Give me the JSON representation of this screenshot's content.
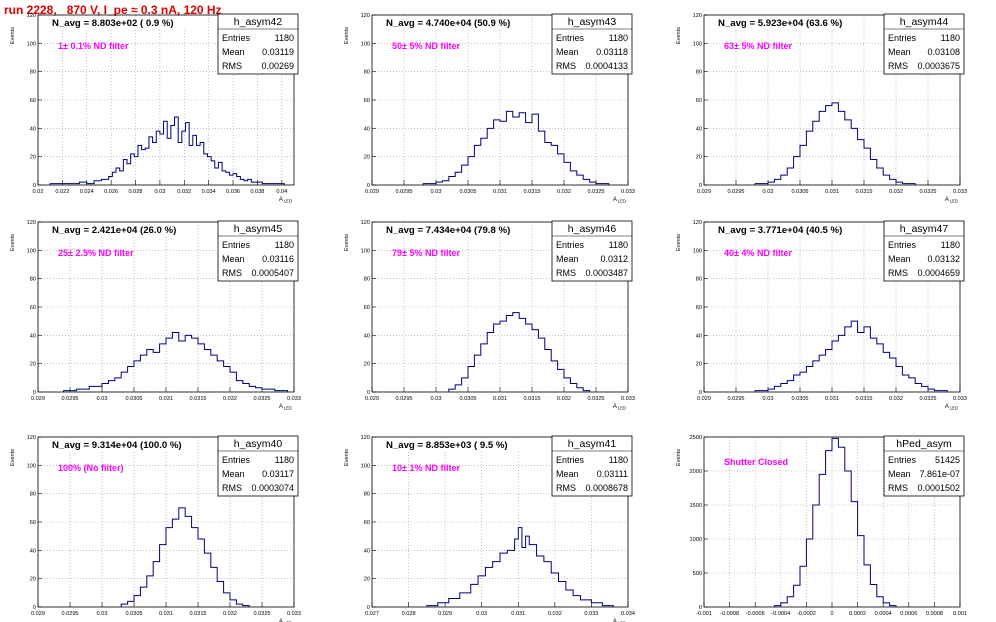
{
  "page": {
    "title": "run 2228,   870 V, I_pe ≈ 0.3 nA, 120 Hz"
  },
  "colors": {
    "hist": "#00007f",
    "note": "#ff00ff",
    "title": "#e00000",
    "grid": "#9a9a9a"
  },
  "stats_labels": {
    "entries": "Entries",
    "mean": "Mean",
    "rms": "RMS"
  },
  "chart_data": [
    {
      "type": "histogram",
      "name": "h_asym42",
      "ylabel": "Events",
      "xlabel": "A_LED",
      "xlim": [
        0.02,
        0.041
      ],
      "ylim": [
        0,
        120
      ],
      "xticks": [
        0.02,
        0.022,
        0.024,
        0.026,
        0.028,
        0.03,
        0.032,
        0.034,
        0.036,
        0.038,
        0.04
      ],
      "xtick_labels": [
        "0.02",
        "0.022",
        "0.024",
        "0.026",
        "0.028",
        "0.03",
        "0.032",
        "0.034",
        "0.036",
        "0.038",
        "0.04"
      ],
      "yticks": [
        0,
        20,
        40,
        60,
        80,
        100,
        120
      ],
      "navg": "N_avg = 8.803e+02 ( 0.9 %)",
      "note": "1± 0.1% ND filter",
      "stats": {
        "entries": "1180",
        "mean": "0.03119",
        "rms": "0.00269"
      },
      "x": [
        0.021,
        0.0222,
        0.0234,
        0.024,
        0.0246,
        0.0252,
        0.0258,
        0.0261,
        0.0264,
        0.0267,
        0.027,
        0.0273,
        0.0276,
        0.0279,
        0.0282,
        0.0285,
        0.0288,
        0.0291,
        0.0294,
        0.0297,
        0.03,
        0.0303,
        0.0306,
        0.0309,
        0.0312,
        0.0315,
        0.0318,
        0.0321,
        0.0324,
        0.0327,
        0.033,
        0.0333,
        0.0336,
        0.0339,
        0.0342,
        0.0345,
        0.0348,
        0.0351,
        0.0354,
        0.0357,
        0.036,
        0.0363,
        0.0366,
        0.0369,
        0.0372,
        0.0375,
        0.0378,
        0.0381,
        0.0384,
        0.039
      ],
      "values": [
        1,
        1,
        2,
        1,
        3,
        4,
        6,
        9,
        12,
        10,
        18,
        15,
        22,
        20,
        28,
        25,
        26,
        34,
        30,
        38,
        36,
        45,
        33,
        42,
        48,
        30,
        38,
        44,
        28,
        35,
        28,
        30,
        22,
        20,
        17,
        12,
        16,
        10,
        9,
        7,
        8,
        6,
        4,
        3,
        4,
        2,
        2,
        2,
        1,
        1
      ]
    },
    {
      "type": "histogram",
      "name": "h_asym43",
      "ylabel": "Events",
      "xlabel": "A_LED",
      "xlim": [
        0.029,
        0.033
      ],
      "ylim": [
        0,
        120
      ],
      "xticks": [
        0.029,
        0.0295,
        0.03,
        0.0305,
        0.031,
        0.0315,
        0.032,
        0.0325,
        0.033
      ],
      "xtick_labels": [
        "0.029",
        "0.0295",
        "0.03",
        "0.0305",
        "0.031",
        "0.0315",
        "0.032",
        "0.0325",
        "0.033"
      ],
      "yticks": [
        0,
        20,
        40,
        60,
        80,
        100,
        120
      ],
      "navg": "N_avg = 4.740e+04 (50.9 %)",
      "note": "50± 5% ND filter",
      "stats": {
        "entries": "1180",
        "mean": "0.03118",
        "rms": "0.0004133"
      },
      "x": [
        0.0298,
        0.03,
        0.0301,
        0.0302,
        0.0303,
        0.0304,
        0.0305,
        0.0306,
        0.0307,
        0.0308,
        0.0309,
        0.031,
        0.0311,
        0.0312,
        0.0313,
        0.0314,
        0.0315,
        0.0316,
        0.0317,
        0.0318,
        0.0319,
        0.032,
        0.0321,
        0.0322,
        0.0323,
        0.0324,
        0.0325
      ],
      "values": [
        1,
        2,
        3,
        6,
        9,
        14,
        20,
        28,
        33,
        40,
        46,
        45,
        52,
        48,
        51,
        44,
        50,
        38,
        30,
        28,
        22,
        16,
        10,
        7,
        4,
        2,
        1
      ]
    },
    {
      "type": "histogram",
      "name": "h_asym44",
      "ylabel": "Events",
      "xlabel": "A_LED",
      "xlim": [
        0.029,
        0.033
      ],
      "ylim": [
        0,
        120
      ],
      "xticks": [
        0.029,
        0.0295,
        0.03,
        0.0305,
        0.031,
        0.0315,
        0.032,
        0.0325,
        0.033
      ],
      "xtick_labels": [
        "0.029",
        "0.0295",
        "0.03",
        "0.0305",
        "0.031",
        "0.0315",
        "0.032",
        "0.0325",
        "0.033"
      ],
      "yticks": [
        0,
        20,
        40,
        60,
        80,
        100,
        120
      ],
      "navg": "N_avg = 5.923e+04 (63.6 %)",
      "note": "63± 5% ND filter",
      "stats": {
        "entries": "1180",
        "mean": "0.03108",
        "rms": "0.0003675"
      },
      "x": [
        0.0298,
        0.03,
        0.0301,
        0.0302,
        0.0303,
        0.0304,
        0.0305,
        0.0306,
        0.0307,
        0.0308,
        0.0309,
        0.031,
        0.0311,
        0.0312,
        0.0313,
        0.0314,
        0.0315,
        0.0316,
        0.0317,
        0.0318,
        0.0319,
        0.032,
        0.0321
      ],
      "values": [
        1,
        2,
        4,
        7,
        12,
        20,
        28,
        38,
        45,
        52,
        56,
        58,
        52,
        46,
        40,
        32,
        26,
        18,
        12,
        7,
        4,
        2,
        1
      ]
    },
    {
      "type": "histogram",
      "name": "h_asym45",
      "ylabel": "Events",
      "xlabel": "A_LED",
      "xlim": [
        0.029,
        0.033
      ],
      "ylim": [
        0,
        120
      ],
      "xticks": [
        0.029,
        0.0295,
        0.03,
        0.0305,
        0.031,
        0.0315,
        0.032,
        0.0325,
        0.033
      ],
      "xtick_labels": [
        "0.029",
        "0.0295",
        "0.03",
        "0.0305",
        "0.031",
        "0.0315",
        "0.032",
        "0.0325",
        "0.033"
      ],
      "yticks": [
        0,
        20,
        40,
        60,
        80,
        100,
        120
      ],
      "navg": "N_avg = 2.421e+04 (26.0 %)",
      "note": "25± 2.5% ND filter",
      "stats": {
        "entries": "1180",
        "mean": "0.03116",
        "rms": "0.0005407"
      },
      "x": [
        0.0294,
        0.0296,
        0.0298,
        0.03,
        0.0301,
        0.0302,
        0.0303,
        0.0304,
        0.0305,
        0.0306,
        0.0307,
        0.0308,
        0.0309,
        0.031,
        0.0311,
        0.0312,
        0.0313,
        0.0314,
        0.0315,
        0.0316,
        0.0317,
        0.0318,
        0.0319,
        0.032,
        0.0321,
        0.0322,
        0.0323,
        0.0324,
        0.0325,
        0.0327
      ],
      "values": [
        1,
        2,
        4,
        6,
        8,
        10,
        14,
        18,
        22,
        26,
        30,
        28,
        34,
        38,
        42,
        36,
        40,
        38,
        34,
        30,
        26,
        22,
        18,
        14,
        8,
        6,
        4,
        3,
        2,
        1
      ]
    },
    {
      "type": "histogram",
      "name": "h_asym46",
      "ylabel": "Events",
      "xlabel": "A_LED",
      "xlim": [
        0.029,
        0.033
      ],
      "ylim": [
        0,
        120
      ],
      "xticks": [
        0.029,
        0.0295,
        0.03,
        0.0305,
        0.031,
        0.0315,
        0.032,
        0.0325,
        0.033
      ],
      "xtick_labels": [
        "0.029",
        "0.0295",
        "0.03",
        "0.0305",
        "0.031",
        "0.0315",
        "0.032",
        "0.0325",
        "0.033"
      ],
      "yticks": [
        0,
        20,
        40,
        60,
        80,
        100,
        120
      ],
      "navg": "N_avg = 7.434e+04 (79.8 %)",
      "note": "79± 5% ND filter",
      "stats": {
        "entries": "1180",
        "mean": "0.0312",
        "rms": "0.0003487"
      },
      "x": [
        0.0302,
        0.0303,
        0.0304,
        0.0305,
        0.0306,
        0.0307,
        0.0308,
        0.0309,
        0.031,
        0.0311,
        0.0312,
        0.0313,
        0.0314,
        0.0315,
        0.0316,
        0.0317,
        0.0318,
        0.0319,
        0.032,
        0.0321,
        0.0322,
        0.0323
      ],
      "values": [
        2,
        5,
        10,
        18,
        26,
        34,
        42,
        48,
        50,
        54,
        56,
        52,
        48,
        44,
        38,
        30,
        22,
        16,
        10,
        6,
        3,
        1
      ]
    },
    {
      "type": "histogram",
      "name": "h_asym47",
      "ylabel": "Events",
      "xlabel": "A_LED",
      "xlim": [
        0.029,
        0.033
      ],
      "ylim": [
        0,
        120
      ],
      "xticks": [
        0.029,
        0.0295,
        0.03,
        0.0305,
        0.031,
        0.0315,
        0.032,
        0.0325,
        0.033
      ],
      "xtick_labels": [
        "0.029",
        "0.0295",
        "0.03",
        "0.0305",
        "0.031",
        "0.0315",
        "0.032",
        "0.0325",
        "0.033"
      ],
      "yticks": [
        0,
        20,
        40,
        60,
        80,
        100,
        120
      ],
      "navg": "N_avg = 3.771e+04 (40.5 %)",
      "note": "40± 4% ND filter",
      "stats": {
        "entries": "1180",
        "mean": "0.03132",
        "rms": "0.0004659"
      },
      "x": [
        0.0298,
        0.03,
        0.0301,
        0.0302,
        0.0303,
        0.0304,
        0.0305,
        0.0306,
        0.0307,
        0.0308,
        0.0309,
        0.031,
        0.0311,
        0.0312,
        0.0313,
        0.0314,
        0.0315,
        0.0316,
        0.0317,
        0.0318,
        0.0319,
        0.032,
        0.0321,
        0.0322,
        0.0323,
        0.0324,
        0.0325,
        0.0326
      ],
      "values": [
        1,
        2,
        4,
        6,
        8,
        12,
        14,
        18,
        22,
        26,
        30,
        36,
        40,
        46,
        50,
        42,
        46,
        38,
        34,
        28,
        24,
        18,
        12,
        10,
        6,
        4,
        2,
        1
      ]
    },
    {
      "type": "histogram",
      "name": "h_asym40",
      "ylabel": "Events",
      "xlabel": "A_LED",
      "xlim": [
        0.029,
        0.033
      ],
      "ylim": [
        0,
        120
      ],
      "xticks": [
        0.029,
        0.0295,
        0.03,
        0.0305,
        0.031,
        0.0315,
        0.032,
        0.0325,
        0.033
      ],
      "xtick_labels": [
        "0.029",
        "0.0295",
        "0.03",
        "0.0305",
        "0.031",
        "0.0315",
        "0.032",
        "0.0325",
        "0.033"
      ],
      "yticks": [
        0,
        20,
        40,
        60,
        80,
        100,
        120
      ],
      "navg": "N_avg = 9.314e+04 (100.0 %)",
      "note": "100% (No filter)",
      "stats": {
        "entries": "1180",
        "mean": "0.03117",
        "rms": "0.0003074"
      },
      "x": [
        0.0303,
        0.0304,
        0.0305,
        0.0306,
        0.0307,
        0.0308,
        0.0309,
        0.031,
        0.0311,
        0.0312,
        0.0313,
        0.0314,
        0.0315,
        0.0316,
        0.0317,
        0.0318,
        0.0319,
        0.032,
        0.0321,
        0.0322
      ],
      "values": [
        2,
        4,
        8,
        14,
        22,
        32,
        44,
        56,
        62,
        70,
        64,
        56,
        48,
        38,
        28,
        18,
        10,
        5,
        2,
        1
      ]
    },
    {
      "type": "histogram",
      "name": "h_asym41",
      "ylabel": "Events",
      "xlabel": "A_LED",
      "xlim": [
        0.027,
        0.034
      ],
      "ylim": [
        0,
        120
      ],
      "xticks": [
        0.027,
        0.028,
        0.029,
        0.03,
        0.031,
        0.032,
        0.033,
        0.034
      ],
      "xtick_labels": [
        "0.027",
        "0.028",
        "0.029",
        "0.03",
        "0.031",
        "0.032",
        "0.033",
        "0.034"
      ],
      "yticks": [
        0,
        20,
        40,
        60,
        80,
        100,
        120
      ],
      "navg": "N_avg = 8.853e+03 ( 9.5 %)",
      "note": "10± 1% ND filter",
      "stats": {
        "entries": "1180",
        "mean": "0.03111",
        "rms": "0.0008678"
      },
      "x": [
        0.0285,
        0.0288,
        0.0291,
        0.0294,
        0.0297,
        0.0299,
        0.0301,
        0.0303,
        0.0305,
        0.0307,
        0.0309,
        0.031,
        0.0311,
        0.0312,
        0.0313,
        0.0315,
        0.0317,
        0.0319,
        0.0321,
        0.0323,
        0.0325,
        0.0327,
        0.033,
        0.0333
      ],
      "values": [
        1,
        3,
        6,
        10,
        16,
        22,
        28,
        32,
        38,
        40,
        48,
        56,
        42,
        50,
        44,
        36,
        32,
        24,
        18,
        12,
        8,
        5,
        3,
        1
      ]
    },
    {
      "type": "histogram",
      "name": "hPed_asym",
      "ylabel": "Events",
      "xlabel": "",
      "xlim": [
        -0.001,
        0.001
      ],
      "ylim": [
        0,
        2500
      ],
      "xticks": [
        -0.001,
        -0.0008,
        -0.0006,
        -0.0004,
        -0.0002,
        0,
        0.0002,
        0.0004,
        0.0006,
        0.0008,
        0.001
      ],
      "xtick_labels": [
        "-0.001",
        "-0.0008",
        "-0.0006",
        "-0.0004",
        "-0.0002",
        "0",
        "0.0002",
        "0.0004",
        "0.0006",
        "0.0008",
        "0.001"
      ],
      "yticks": [
        0,
        500,
        1000,
        1500,
        2000,
        2500
      ],
      "navg": "",
      "note": "Shutter Closed",
      "stats": {
        "entries": "51425",
        "mean": "7.861e-07",
        "rms": "0.0001502"
      },
      "x": [
        -0.00045,
        -0.0004,
        -0.00035,
        -0.0003,
        -0.00025,
        -0.0002,
        -0.00015,
        -0.0001,
        -5e-05,
        0,
        5e-05,
        0.0001,
        0.00015,
        0.0002,
        0.00025,
        0.0003,
        0.00035,
        0.0004,
        0.00045
      ],
      "values": [
        20,
        60,
        150,
        320,
        600,
        1000,
        1500,
        1950,
        2300,
        2480,
        2350,
        2000,
        1550,
        1050,
        620,
        330,
        150,
        60,
        20
      ]
    }
  ]
}
